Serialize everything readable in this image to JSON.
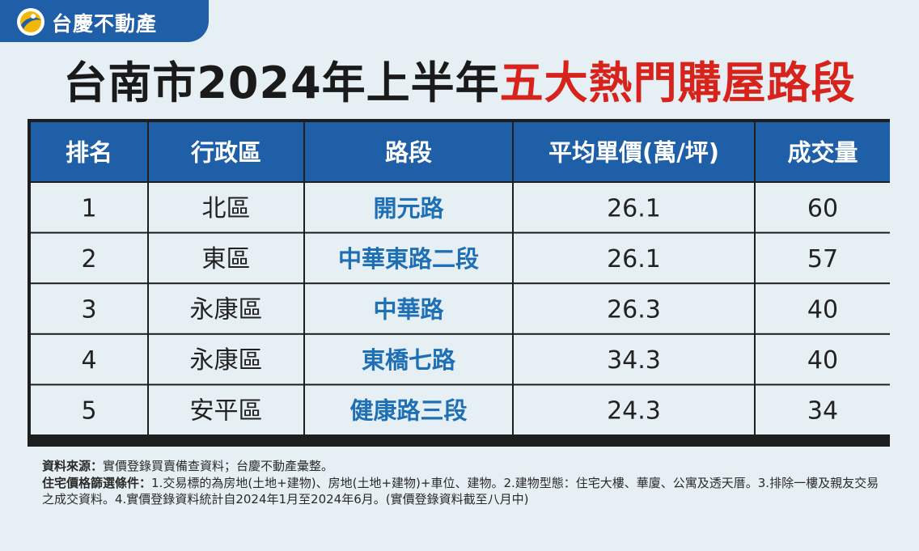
{
  "brand": {
    "name": "台慶不動產",
    "logo_icon": "taching-logo-icon"
  },
  "title": {
    "part1": "台南市2024年上半年",
    "part2": "五大熱門購屋路段"
  },
  "colors": {
    "header_bg": "#1f5fa8",
    "highlight_text": "#1f6fb5",
    "title_red": "#d7231c",
    "row_bg": "#e6eff3"
  },
  "chart_data": {
    "type": "table",
    "columns": [
      "排名",
      "行政區",
      "路段",
      "平均單價(萬/坪)",
      "成交量"
    ],
    "rows": [
      [
        "1",
        "北區",
        "開元路",
        "26.1",
        "60"
      ],
      [
        "2",
        "東區",
        "中華東路二段",
        "26.1",
        "57"
      ],
      [
        "3",
        "永康區",
        "中華路",
        "26.3",
        "40"
      ],
      [
        "4",
        "永康區",
        "東橋七路",
        "34.3",
        "40"
      ],
      [
        "5",
        "安平區",
        "健康路三段",
        "24.3",
        "34"
      ]
    ]
  },
  "notes": {
    "source_label": "資料來源：",
    "source_text": "實價登錄買賣備查資料；台慶不動產彙整。",
    "criteria_label": "住宅價格篩選條件：",
    "criteria_text": "1.交易標的為房地(土地+建物)、房地(土地+建物)+車位、建物。2.建物型態：住宅大樓、華廈、公寓及透天厝。3.排除一樓及親友交易之成交資料。4.實價登錄資料統計自2024年1月至2024年6月。(實價登錄資料截至八月中)"
  }
}
